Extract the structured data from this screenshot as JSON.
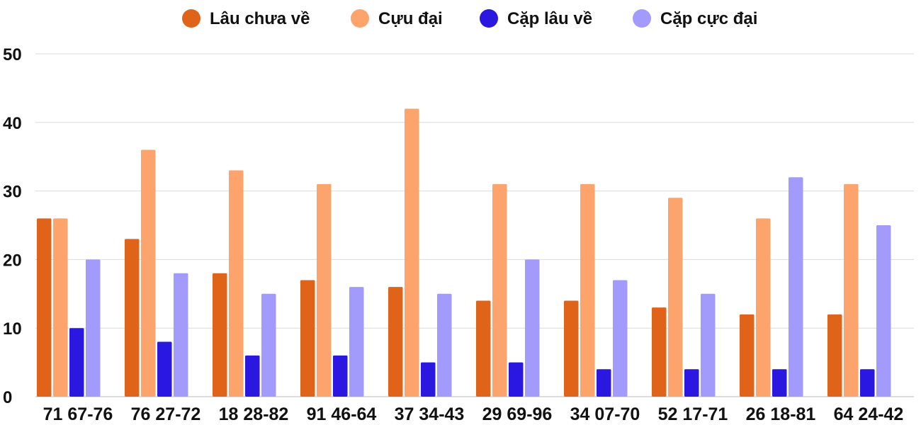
{
  "chart_data": {
    "type": "bar",
    "title": "",
    "xlabel": "",
    "ylabel": "",
    "ylim": [
      0,
      50
    ],
    "yticks": [
      0,
      10,
      20,
      30,
      40,
      50
    ],
    "grid": true,
    "legend_position": "top-center",
    "categories": [
      "71 67-76",
      "76 27-72",
      "18 28-82",
      "91 46-64",
      "37 34-43",
      "29 69-96",
      "34 07-70",
      "52 17-71",
      "26 18-81",
      "64 24-42"
    ],
    "series": [
      {
        "name": "Lâu chưa về",
        "color": "#e0631a",
        "values": [
          26,
          23,
          18,
          17,
          16,
          14,
          14,
          13,
          12,
          12
        ]
      },
      {
        "name": "Cựu đại",
        "color": "#fca46b",
        "values": [
          26,
          36,
          33,
          31,
          42,
          31,
          31,
          29,
          26,
          31
        ]
      },
      {
        "name": "Cặp lâu về",
        "color": "#2a17e0",
        "values": [
          10,
          8,
          6,
          6,
          5,
          5,
          4,
          4,
          4,
          4
        ]
      },
      {
        "name": "Cặp cực đại",
        "color": "#a39bfc",
        "values": [
          20,
          18,
          15,
          16,
          15,
          20,
          17,
          15,
          32,
          25
        ]
      }
    ]
  }
}
